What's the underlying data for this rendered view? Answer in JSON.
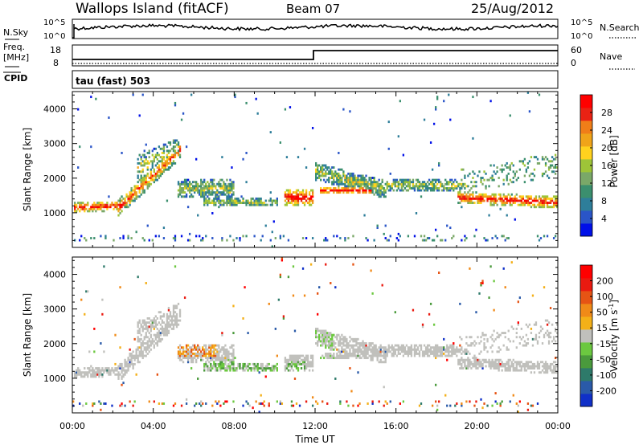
{
  "header": {
    "station": "Wallops Island (fitACF)",
    "beam": "Beam 07",
    "date": "25/Aug/2012"
  },
  "top_panels": {
    "nsky_label": "N.Sky",
    "nsky_ticks": [
      "10^5",
      "10^0"
    ],
    "nsearch_label": "N.Search",
    "nsearch_ticks": [
      "10^5",
      "10^0"
    ],
    "freq_label": "Freq.",
    "freq_unit": "[MHz]",
    "freq_ticks": [
      "18",
      "8"
    ],
    "nave_label": "Nave",
    "nave_ticks": [
      "60",
      "0"
    ],
    "cpid_label": "CPID",
    "cpid_text": "tau (fast) 503"
  },
  "chart_data": [
    {
      "type": "heatmap",
      "name": "power",
      "ylabel": "Slant Range [km]",
      "xlabel": "",
      "ylim": [
        0,
        4500
      ],
      "yticks": [
        1000,
        2000,
        3000,
        4000
      ],
      "xlim": [
        0,
        24
      ],
      "colorbar": {
        "label": "Power [dB]",
        "ticks": [
          "28",
          "24",
          "20",
          "16",
          "12",
          "8",
          "4"
        ],
        "colors": [
          "#0010e8",
          "#2a55c8",
          "#2e7e9a",
          "#3b8f6e",
          "#7aa868",
          "#9ec438",
          "#ffd21e",
          "#f0a419",
          "#f07e18",
          "#ea2214",
          "#ff0000"
        ]
      },
      "features": [
        {
          "x": [
            0.5,
            2.5
          ],
          "y": [
            1150,
            1200
          ]
        },
        {
          "x": [
            2.5,
            5.3
          ],
          "y": [
            1300,
            2700
          ]
        },
        {
          "x": [
            12.2,
            14.5
          ],
          "y": [
            1600,
            2250
          ]
        },
        {
          "x": [
            14.5,
            18.5
          ],
          "y": [
            1700,
            1900
          ]
        },
        {
          "x": [
            19.5,
            23.8
          ],
          "y": [
            1300,
            1600
          ]
        }
      ]
    },
    {
      "type": "heatmap",
      "name": "velocity",
      "ylabel": "Slant Range [km]",
      "xlabel": "Time UT",
      "ylim": [
        0,
        4500
      ],
      "yticks": [
        1000,
        2000,
        3000,
        4000
      ],
      "xlim": [
        0,
        24
      ],
      "xticks": [
        "00:00",
        "04:00",
        "08:00",
        "12:00",
        "16:00",
        "20:00",
        "00:00"
      ],
      "colorbar": {
        "label": "Velocity [m s",
        "label_sup": "-1",
        "label_end": "]",
        "ticks": [
          "200",
          "100",
          "50",
          "15",
          "-15",
          "-50",
          "-100",
          "-200"
        ],
        "colors": [
          "#1030c8",
          "#2a5aa8",
          "#2e7a6a",
          "#4a9a3c",
          "#6cc840",
          "#c0c0bc",
          "#f4b018",
          "#f08a18",
          "#e65414",
          "#ea1a10",
          "#ff0000"
        ]
      }
    }
  ]
}
